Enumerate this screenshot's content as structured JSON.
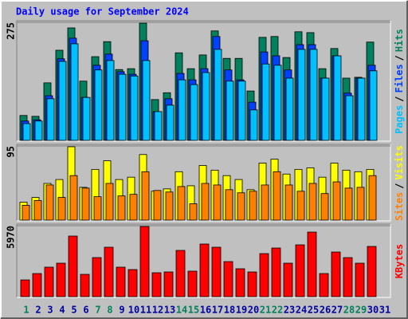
{
  "chart_data": {
    "type": "bar",
    "title": "Daily usage for September 2024",
    "categories": [
      "1",
      "2",
      "3",
      "4",
      "5",
      "6",
      "7",
      "8",
      "9",
      "10",
      "11",
      "12",
      "13",
      "14",
      "15",
      "16",
      "17",
      "18",
      "19",
      "20",
      "21",
      "22",
      "23",
      "24",
      "25",
      "26",
      "27",
      "28",
      "29",
      "30",
      "31"
    ],
    "category_colors": [
      "#00805c",
      "#0000a0",
      "#0000a0",
      "#0000a0",
      "#0000a0",
      "#0000a0",
      "#00805c",
      "#00805c",
      "#0000a0",
      "#0000a0",
      "#0000a0",
      "#0000a0",
      "#0000a0",
      "#00805c",
      "#00805c",
      "#0000a0",
      "#0000a0",
      "#0000a0",
      "#0000a0",
      "#0000a0",
      "#00805c",
      "#00805c",
      "#0000a0",
      "#0000a0",
      "#0000a0",
      "#0000a0",
      "#0000a0",
      "#00805c",
      "#00805c",
      "#0000a0",
      "#0000a0"
    ],
    "legend_separator": "/",
    "panels": [
      {
        "ylim": [
          0,
          275
        ],
        "yticks": [
          275
        ],
        "series": [
          {
            "name": "Hits",
            "color": "#00805c",
            "values": [
              58,
              56,
              134,
              210,
              262,
              138,
              195,
              230,
              165,
              167,
              273,
              95,
              111,
              204,
              167,
              199,
              255,
              191,
              191,
              115,
              240,
              242,
              193,
              253,
              251,
              167,
              214,
              145,
              147,
              229,
              null
            ]
          },
          {
            "name": "Files",
            "color": "#0040ff",
            "values": [
              45,
              48,
              104,
              190,
              238,
              100,
              175,
              201,
              160,
              154,
              232,
              67,
              97,
              156,
              141,
              167,
              242,
              164,
              141,
              89,
              206,
              197,
              164,
              223,
              223,
              145,
              197,
              110,
              145,
              175,
              null
            ]
          },
          {
            "name": "Pages",
            "color": "#00c0ff",
            "values": [
              39,
              45,
              97,
              184,
              225,
              100,
              164,
              186,
              154,
              150,
              186,
              67,
              82,
              141,
              130,
              158,
              212,
              138,
              138,
              71,
              178,
              175,
              145,
              212,
              212,
              145,
              197,
              104,
              145,
              162,
              null
            ]
          }
        ]
      },
      {
        "ylim": [
          0,
          95
        ],
        "yticks": [
          95
        ],
        "series": [
          {
            "name": "Visits",
            "color": "#ffff00",
            "values": [
              23,
              29,
              47,
              52,
              94,
              42,
              65,
              76,
              52,
              55,
              84,
              37,
              40,
              62,
              44,
              70,
              64,
              57,
              52,
              39,
              73,
              78,
              59,
              65,
              67,
              55,
              73,
              64,
              62,
              65,
              null
            ]
          },
          {
            "name": "Sites",
            "color": "#ff8000",
            "values": [
              19,
              25,
              45,
              29,
              57,
              41,
              30,
              47,
              31,
              33,
              62,
              38,
              36,
              43,
              21,
              47,
              45,
              39,
              35,
              37,
              45,
              62,
              45,
              37,
              47,
              34,
              49,
              41,
              42,
              57,
              null
            ]
          }
        ]
      },
      {
        "ylim": [
          0,
          5970
        ],
        "yticks": [
          5970
        ],
        "series": [
          {
            "name": "KBytes",
            "color": "#ff0000",
            "values": [
              1409,
              1945,
              2482,
              2817,
              5098,
              1878,
              3287,
              4159,
              2482,
              2281,
              5903,
              2012,
              2079,
              3891,
              2146,
              4427,
              4159,
              2951,
              2348,
              2079,
              3622,
              4092,
              2817,
              4360,
              5433,
              1945,
              3756,
              3287,
              2817,
              4226,
              null
            ]
          }
        ]
      }
    ]
  }
}
